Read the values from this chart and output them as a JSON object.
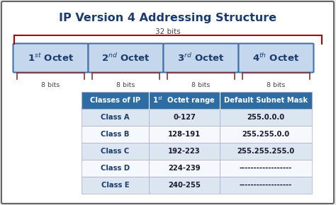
{
  "title": "IP Version 4 Addressing Structure",
  "title_fontsize": 11.5,
  "background_color": "#e8e8e8",
  "border_color": "#666666",
  "bits_label_top": "32 bits",
  "bits_labels_bottom": [
    "8 bits",
    "8 bits",
    "8 bits",
    "8 bits"
  ],
  "octet_box_color": "#c5d7ec",
  "octet_box_edge": "#4472a8",
  "table_header": [
    "Classes of IP",
    "1st  Octet range",
    "Default Subnet Mask"
  ],
  "table_header_bg": "#2e6da4",
  "table_header_fg": "#ffffff",
  "table_rows": [
    [
      "Class A",
      "0-127",
      "255.0.0.0"
    ],
    [
      "Class B",
      "128-191",
      "255.255.0.0"
    ],
    [
      "Class C",
      "192-223",
      "255.255.255.0"
    ],
    [
      "Class D",
      "224-239",
      "------------------"
    ],
    [
      "Class E",
      "240-255",
      "------------------"
    ]
  ],
  "table_row_colors": [
    "#dce6f1",
    "#f5f8fd",
    "#dce6f1",
    "#f5f8fd",
    "#dce6f1"
  ],
  "brace_color": "#aa0000",
  "bottom_brace_color": "#883333",
  "white_bg": "#ffffff"
}
